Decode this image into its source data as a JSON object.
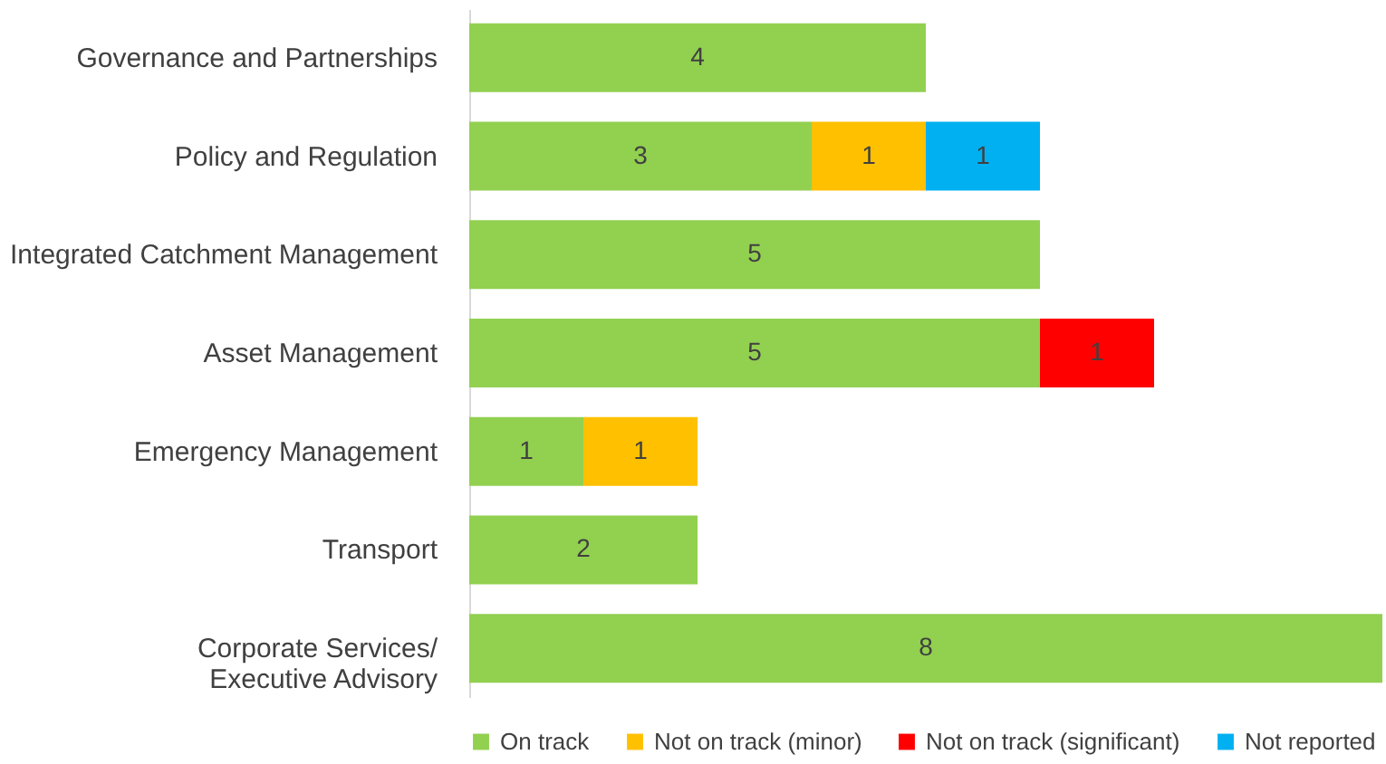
{
  "chart_data": {
    "type": "bar",
    "orientation": "horizontal",
    "stacked": true,
    "data_labels": true,
    "legend": "bottom",
    "grid": false,
    "tick_labels": "y",
    "categories": [
      "Governance and Partnerships",
      "Policy and Regulation",
      "Integrated Catchment Management",
      "Asset Management",
      "Emergency Management",
      "Transport",
      "Corporate Services/\nExecutive Advisory"
    ],
    "series": [
      {
        "name": "On track",
        "color": "#92d050",
        "values": [
          4,
          3,
          5,
          5,
          1,
          2,
          8
        ]
      },
      {
        "name": "Not on track (minor)",
        "color": "#ffc000",
        "values": [
          null,
          1,
          null,
          null,
          1,
          null,
          null
        ]
      },
      {
        "name": "Not on track (significant)",
        "color": "#ff0000",
        "values": [
          null,
          null,
          null,
          1,
          null,
          null,
          null
        ]
      },
      {
        "name": "Not reported",
        "color": "#00b0f0",
        "values": [
          null,
          1,
          null,
          null,
          null,
          null,
          null
        ]
      }
    ]
  }
}
